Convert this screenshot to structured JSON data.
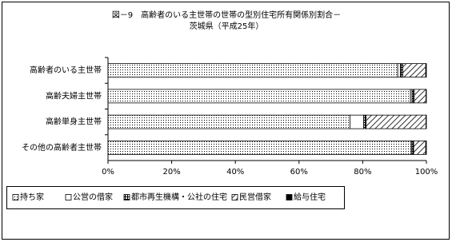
{
  "chart_data": {
    "type": "stacked-barh",
    "title": "図－9　高齢者のいる主世帯の世帯の型別住宅所有関係別割合－",
    "subtitle": "茨城県（平成25年）",
    "categories": [
      "高齢者のいる主世帯",
      "高齢夫婦主世帯",
      "高齢単身主世帯",
      "その他の高齢者主世帯"
    ],
    "series": [
      {
        "name": "持ち家",
        "color": "#000000",
        "pattern": "dots",
        "values": [
          91.0,
          95.0,
          76.0,
          95.2
        ]
      },
      {
        "name": "公営の借家",
        "color": "#000000",
        "pattern": "none",
        "values": [
          0.8,
          0.5,
          4.3,
          0.3
        ]
      },
      {
        "name": "都市再生機構・公社の住宅",
        "color": "#000000",
        "pattern": "grid",
        "values": [
          0.8,
          0.7,
          0.8,
          0.5
        ]
      },
      {
        "name": "民営借家",
        "color": "#000000",
        "pattern": "hatch",
        "values": [
          7.2,
          3.7,
          18.8,
          3.8
        ]
      },
      {
        "name": "給与住宅",
        "color": "#000000",
        "pattern": "solid",
        "values": [
          0.2,
          0.1,
          0.1,
          0.2
        ]
      }
    ],
    "xlim": [
      0,
      100
    ],
    "xticks": [
      {
        "value": 0,
        "label": "0%"
      },
      {
        "value": 20,
        "label": "20%"
      },
      {
        "value": 40,
        "label": "40%"
      },
      {
        "value": 60,
        "label": "60%"
      },
      {
        "value": 80,
        "label": "80%"
      },
      {
        "value": 100,
        "label": "100%"
      }
    ],
    "legend": "bottom"
  }
}
